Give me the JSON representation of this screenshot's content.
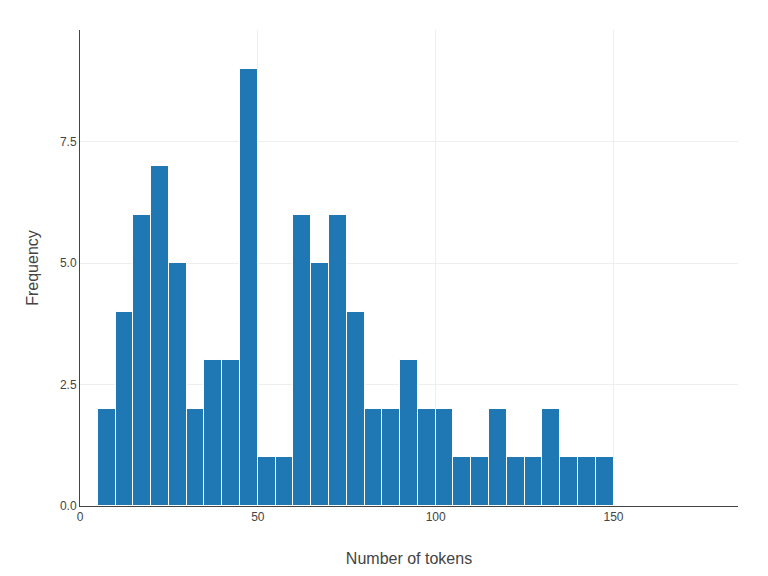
{
  "chart_data": {
    "type": "histogram",
    "xlabel": "Number of tokens",
    "ylabel": "Frequency",
    "bins": [
      5,
      10,
      15,
      20,
      25,
      30,
      35,
      40,
      45,
      50,
      55,
      60,
      65,
      70,
      75,
      80,
      85,
      90,
      95,
      100,
      105,
      110,
      115,
      120,
      125,
      130,
      135,
      140,
      145,
      150
    ],
    "values": [
      2,
      4,
      6,
      7,
      5,
      2,
      3,
      3,
      9,
      1,
      1,
      6,
      5,
      6,
      4,
      2,
      2,
      3,
      2,
      2,
      1,
      1,
      2,
      1,
      1,
      2,
      1,
      1,
      1
    ],
    "xlim": [
      0,
      185
    ],
    "ylim": [
      0,
      9.8
    ],
    "xticks": [
      0,
      50,
      100,
      150
    ],
    "yticks": [
      {
        "value": 0,
        "label": "0.0"
      },
      2.5,
      {
        "value": 5,
        "label": "5.0"
      },
      7.5
    ],
    "grid": true
  }
}
